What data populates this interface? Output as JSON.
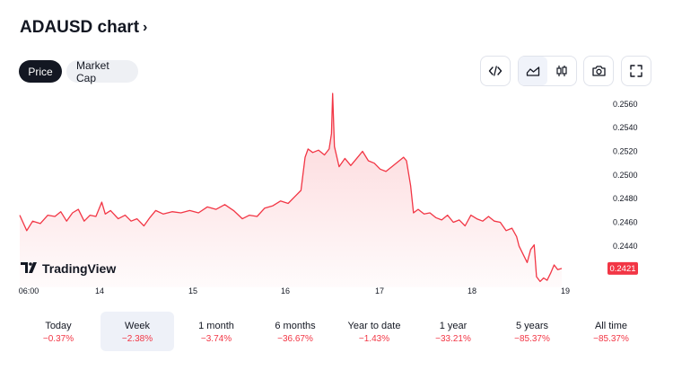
{
  "header": {
    "title": "ADAUSD chart",
    "chevron": "›"
  },
  "tabs": [
    {
      "label": "Price",
      "active": true
    },
    {
      "label": "Market Cap",
      "active": false
    }
  ],
  "toolbar": {
    "icons": [
      "embed-code-icon",
      "area-chart-icon",
      "candles-icon",
      "camera-icon",
      "fullscreen-icon"
    ],
    "selected": "area-chart-icon"
  },
  "chart_data": {
    "type": "area",
    "series_color": "#f23645",
    "y_ticks": [
      "0.2560",
      "0.2540",
      "0.2520",
      "0.2500",
      "0.2480",
      "0.2460",
      "0.2440"
    ],
    "ylim": [
      0.2405,
      0.2572
    ],
    "x_ticks": [
      "06:00",
      "14",
      "15",
      "16",
      "17",
      "18",
      "19"
    ],
    "last_price": "0.2421",
    "watermark": "TradingView",
    "points": [
      [
        0.0,
        0.2466
      ],
      [
        0.012,
        0.2453
      ],
      [
        0.022,
        0.2461
      ],
      [
        0.035,
        0.2459
      ],
      [
        0.048,
        0.2466
      ],
      [
        0.06,
        0.2465
      ],
      [
        0.07,
        0.2469
      ],
      [
        0.08,
        0.2461
      ],
      [
        0.09,
        0.2468
      ],
      [
        0.1,
        0.2471
      ],
      [
        0.11,
        0.2461
      ],
      [
        0.12,
        0.2466
      ],
      [
        0.13,
        0.2465
      ],
      [
        0.14,
        0.2477
      ],
      [
        0.146,
        0.2467
      ],
      [
        0.155,
        0.247
      ],
      [
        0.168,
        0.2463
      ],
      [
        0.18,
        0.2466
      ],
      [
        0.19,
        0.2461
      ],
      [
        0.2,
        0.2463
      ],
      [
        0.212,
        0.2457
      ],
      [
        0.222,
        0.2464
      ],
      [
        0.232,
        0.247
      ],
      [
        0.245,
        0.2467
      ],
      [
        0.26,
        0.2469
      ],
      [
        0.275,
        0.2468
      ],
      [
        0.29,
        0.247
      ],
      [
        0.305,
        0.2468
      ],
      [
        0.32,
        0.2473
      ],
      [
        0.335,
        0.2471
      ],
      [
        0.35,
        0.2475
      ],
      [
        0.365,
        0.247
      ],
      [
        0.38,
        0.2463
      ],
      [
        0.392,
        0.2466
      ],
      [
        0.405,
        0.2465
      ],
      [
        0.418,
        0.2472
      ],
      [
        0.432,
        0.2474
      ],
      [
        0.445,
        0.2478
      ],
      [
        0.458,
        0.2476
      ],
      [
        0.47,
        0.2482
      ],
      [
        0.48,
        0.2487
      ],
      [
        0.487,
        0.2515
      ],
      [
        0.492,
        0.2522
      ],
      [
        0.5,
        0.2519
      ],
      [
        0.51,
        0.2521
      ],
      [
        0.52,
        0.2517
      ],
      [
        0.528,
        0.2522
      ],
      [
        0.532,
        0.2535
      ],
      [
        0.534,
        0.2569
      ],
      [
        0.537,
        0.2524
      ],
      [
        0.545,
        0.2507
      ],
      [
        0.555,
        0.2514
      ],
      [
        0.565,
        0.2508
      ],
      [
        0.575,
        0.2514
      ],
      [
        0.585,
        0.252
      ],
      [
        0.595,
        0.2512
      ],
      [
        0.605,
        0.251
      ],
      [
        0.615,
        0.2505
      ],
      [
        0.625,
        0.2503
      ],
      [
        0.635,
        0.2507
      ],
      [
        0.645,
        0.2511
      ],
      [
        0.655,
        0.2515
      ],
      [
        0.66,
        0.2512
      ],
      [
        0.667,
        0.2491
      ],
      [
        0.672,
        0.2468
      ],
      [
        0.68,
        0.2471
      ],
      [
        0.69,
        0.2467
      ],
      [
        0.7,
        0.2468
      ],
      [
        0.71,
        0.2464
      ],
      [
        0.72,
        0.2462
      ],
      [
        0.73,
        0.2466
      ],
      [
        0.74,
        0.246
      ],
      [
        0.75,
        0.2462
      ],
      [
        0.76,
        0.2457
      ],
      [
        0.77,
        0.2466
      ],
      [
        0.78,
        0.2463
      ],
      [
        0.79,
        0.2461
      ],
      [
        0.8,
        0.2465
      ],
      [
        0.81,
        0.2461
      ],
      [
        0.82,
        0.246
      ],
      [
        0.83,
        0.2453
      ],
      [
        0.84,
        0.2455
      ],
      [
        0.848,
        0.2448
      ],
      [
        0.852,
        0.244
      ],
      [
        0.86,
        0.2432
      ],
      [
        0.866,
        0.2426
      ],
      [
        0.872,
        0.2437
      ],
      [
        0.878,
        0.2441
      ],
      [
        0.882,
        0.2414
      ],
      [
        0.888,
        0.241
      ],
      [
        0.894,
        0.2413
      ],
      [
        0.9,
        0.2411
      ],
      [
        0.906,
        0.2417
      ],
      [
        0.912,
        0.2424
      ],
      [
        0.918,
        0.242
      ],
      [
        0.925,
        0.2421
      ]
    ]
  },
  "periods": [
    {
      "label": "Today",
      "change": "−0.37%",
      "selected": false
    },
    {
      "label": "Week",
      "change": "−2.38%",
      "selected": true
    },
    {
      "label": "1 month",
      "change": "−3.74%",
      "selected": false
    },
    {
      "label": "6 months",
      "change": "−36.67%",
      "selected": false
    },
    {
      "label": "Year to date",
      "change": "−1.43%",
      "selected": false
    },
    {
      "label": "1 year",
      "change": "−33.21%",
      "selected": false
    },
    {
      "label": "5 years",
      "change": "−85.37%",
      "selected": false
    },
    {
      "label": "All time",
      "change": "−85.37%",
      "selected": false
    }
  ]
}
